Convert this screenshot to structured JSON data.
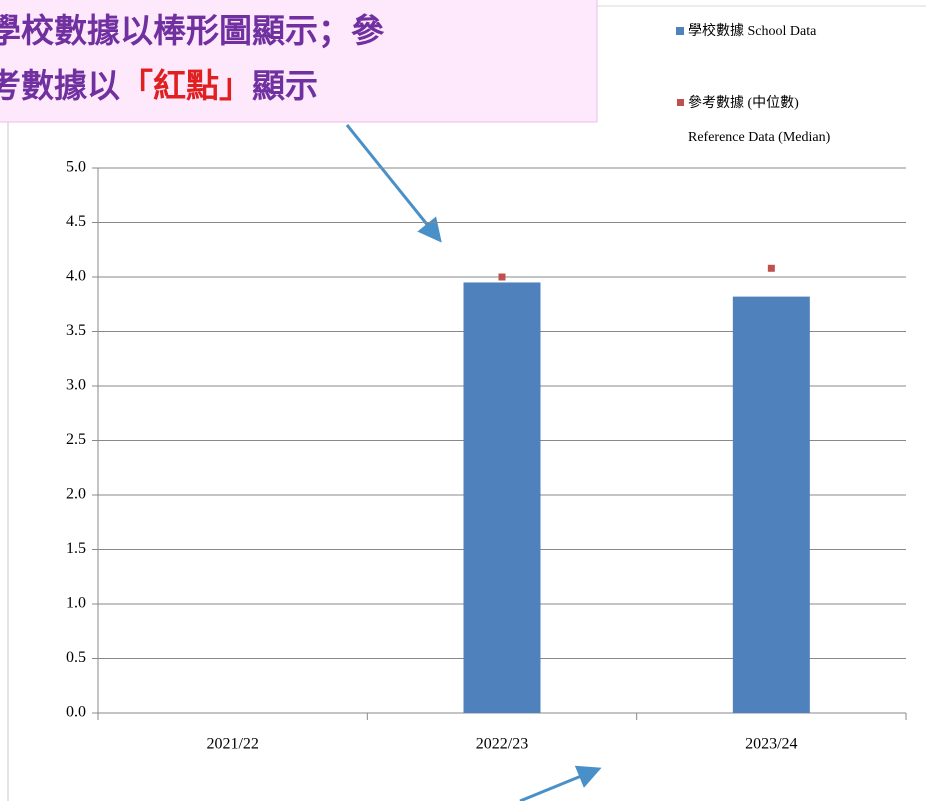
{
  "chart_data": {
    "type": "bar",
    "annotation": {
      "line1": "學校數據以棒形圖顯示；參",
      "line2_start": "考數據以",
      "line2_red": "「紅點」",
      "line2_end": "顯示"
    },
    "categories": [
      "2021/22",
      "2022/23",
      "2023/24"
    ],
    "series": [
      {
        "name": "學校數據 School Data",
        "color": "#4f81bd",
        "values": [
          null,
          3.95,
          3.82
        ]
      },
      {
        "name": "參考數據 (中位數)",
        "name_line2": "Reference Data (Median)",
        "color": "#c0504d",
        "values": [
          null,
          4.0,
          4.08
        ]
      }
    ],
    "ylim": [
      0,
      5
    ],
    "yticks": [
      {
        "value": 0,
        "label": "0.0"
      },
      {
        "value": 0.5,
        "label": "0.5"
      },
      {
        "value": 1,
        "label": "1.0"
      },
      {
        "value": 1.5,
        "label": "1.5"
      },
      {
        "value": 2,
        "label": "2.0"
      },
      {
        "value": 2.5,
        "label": "2.5"
      },
      {
        "value": 3,
        "label": "3.0"
      },
      {
        "value": 3.5,
        "label": "3.5"
      },
      {
        "value": 4,
        "label": "4.0"
      },
      {
        "value": 4.5,
        "label": "4.5"
      },
      {
        "value": 5,
        "label": "5.0"
      }
    ],
    "grid": true
  }
}
